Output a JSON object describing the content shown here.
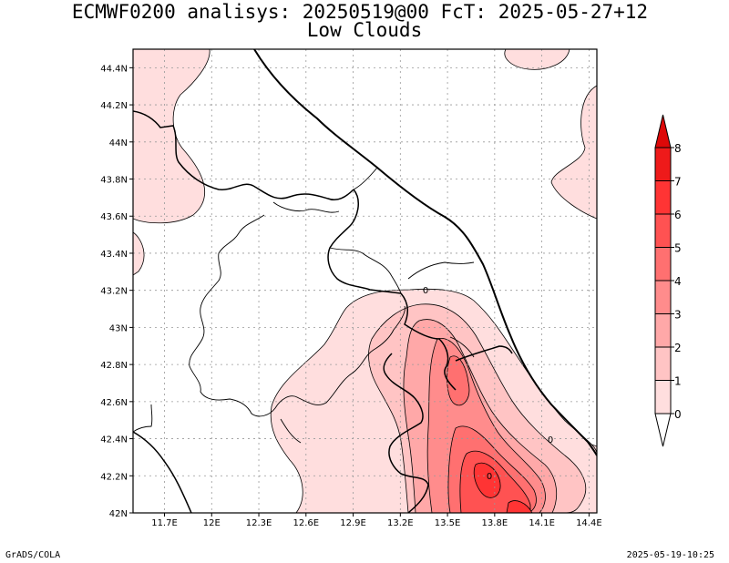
{
  "title": {
    "line1": "ECMWF0200 analisys: 20250519@00 FcT: 2025-05-27+12",
    "line2": "Low Clouds"
  },
  "footer": {
    "left": "GrADS/COLA",
    "right": "2025-05-19-10:25"
  },
  "map": {
    "lon_range": [
      11.5,
      14.45
    ],
    "lat_range": [
      42.0,
      44.5
    ],
    "lon_ticks": [
      "11.7E",
      "12E",
      "12.3E",
      "12.6E",
      "12.9E",
      "13.2E",
      "13.5E",
      "13.8E",
      "14.1E",
      "14.4E"
    ],
    "lon_tick_values": [
      11.7,
      12.0,
      12.3,
      12.6,
      12.9,
      13.2,
      13.5,
      13.8,
      14.1,
      14.4
    ],
    "lat_ticks": [
      "42N",
      "42.2N",
      "42.4N",
      "42.6N",
      "42.8N",
      "43N",
      "43.2N",
      "43.4N",
      "43.6N",
      "43.8N",
      "44N",
      "44.2N",
      "44.4N"
    ],
    "lat_tick_values": [
      42.0,
      42.2,
      42.4,
      42.6,
      42.8,
      43.0,
      43.2,
      43.4,
      43.6,
      43.8,
      44.0,
      44.2,
      44.4
    ],
    "grid": true,
    "contour_labels": [
      "0",
      "0",
      "0"
    ]
  },
  "colorbar": {
    "levels": [
      "0",
      "1",
      "2",
      "3",
      "4",
      "5",
      "6",
      "7",
      "8"
    ],
    "colors": [
      "#ffffff",
      "#ffdede",
      "#ffc4c4",
      "#ffa8a8",
      "#ff8c8c",
      "#ff7070",
      "#ff5252",
      "#ff3434",
      "#ee1a1a",
      "#dd0808"
    ]
  }
}
